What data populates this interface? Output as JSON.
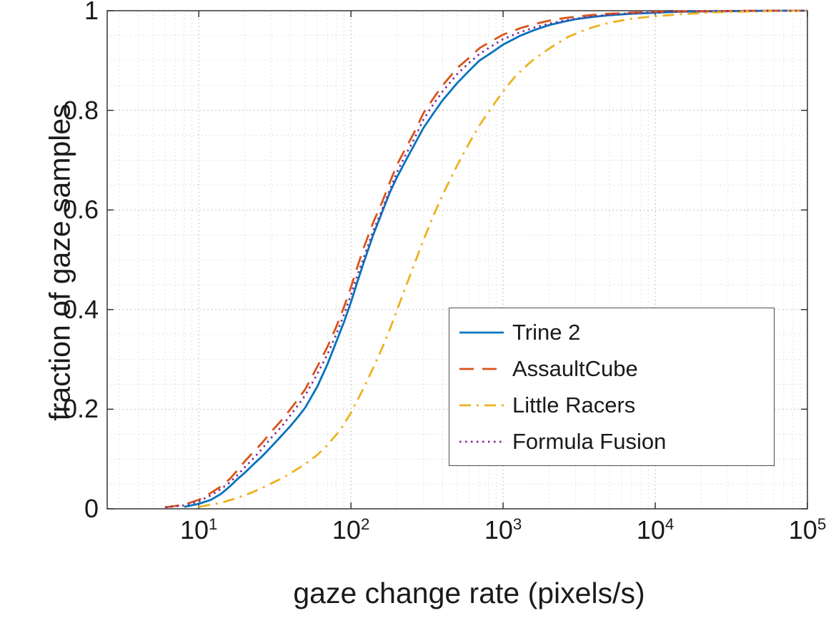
{
  "figure": {
    "background": "#ffffff",
    "text_color": "#1a1a1a"
  },
  "chart_data": {
    "type": "line",
    "subtype": "cdf",
    "title": "",
    "xlabel": "gaze change rate (pixels/s)",
    "ylabel": "fraction of gaze samples",
    "x_scale": "log",
    "xlim": [
      2.5,
      100000
    ],
    "ylim": [
      0,
      1
    ],
    "x_ticks": [
      {
        "base": "10",
        "exp": "1",
        "value": 10
      },
      {
        "base": "10",
        "exp": "2",
        "value": 100
      },
      {
        "base": "10",
        "exp": "3",
        "value": 1000
      },
      {
        "base": "10",
        "exp": "4",
        "value": 10000
      },
      {
        "base": "10",
        "exp": "5",
        "value": 100000
      }
    ],
    "y_ticks": [
      {
        "label": "0",
        "value": 0
      },
      {
        "label": "0.2",
        "value": 0.2
      },
      {
        "label": "0.4",
        "value": 0.4
      },
      {
        "label": "0.6",
        "value": 0.6
      },
      {
        "label": "0.8",
        "value": 0.8
      },
      {
        "label": "1",
        "value": 1
      }
    ],
    "grid": {
      "major": true,
      "minor": true,
      "style": "dotted",
      "y_minor_step": 0.05
    },
    "legend": {
      "position": "center-right",
      "border": true
    },
    "series": [
      {
        "name": "Trine 2",
        "color": "#0072BD",
        "line_style": "solid",
        "points": [
          [
            8,
            0.004
          ],
          [
            10,
            0.01
          ],
          [
            12,
            0.018
          ],
          [
            14,
            0.03
          ],
          [
            16,
            0.045
          ],
          [
            18,
            0.06
          ],
          [
            20,
            0.072
          ],
          [
            23,
            0.09
          ],
          [
            26,
            0.105
          ],
          [
            30,
            0.125
          ],
          [
            35,
            0.147
          ],
          [
            40,
            0.166
          ],
          [
            45,
            0.185
          ],
          [
            50,
            0.203
          ],
          [
            60,
            0.245
          ],
          [
            70,
            0.29
          ],
          [
            80,
            0.335
          ],
          [
            90,
            0.375
          ],
          [
            100,
            0.415
          ],
          [
            110,
            0.455
          ],
          [
            120,
            0.49
          ],
          [
            140,
            0.55
          ],
          [
            160,
            0.595
          ],
          [
            180,
            0.635
          ],
          [
            200,
            0.665
          ],
          [
            230,
            0.7
          ],
          [
            260,
            0.73
          ],
          [
            300,
            0.765
          ],
          [
            350,
            0.795
          ],
          [
            400,
            0.82
          ],
          [
            500,
            0.855
          ],
          [
            600,
            0.88
          ],
          [
            700,
            0.9
          ],
          [
            850,
            0.917
          ],
          [
            1000,
            0.932
          ],
          [
            1300,
            0.95
          ],
          [
            1600,
            0.961
          ],
          [
            2000,
            0.971
          ],
          [
            2500,
            0.978
          ],
          [
            3000,
            0.983
          ],
          [
            4000,
            0.988
          ],
          [
            5000,
            0.991
          ],
          [
            7000,
            0.994
          ],
          [
            10000,
            0.996
          ],
          [
            15000,
            0.998
          ],
          [
            30000,
            0.999
          ],
          [
            60000,
            1.0
          ],
          [
            100000,
            1.0
          ]
        ]
      },
      {
        "name": "AssaultCube",
        "color": "#D95319",
        "line_style": "dashed",
        "points": [
          [
            6,
            0.003
          ],
          [
            8,
            0.008
          ],
          [
            10,
            0.018
          ],
          [
            12,
            0.032
          ],
          [
            14,
            0.045
          ],
          [
            16,
            0.06
          ],
          [
            18,
            0.078
          ],
          [
            20,
            0.095
          ],
          [
            23,
            0.115
          ],
          [
            26,
            0.132
          ],
          [
            30,
            0.155
          ],
          [
            35,
            0.178
          ],
          [
            40,
            0.2
          ],
          [
            45,
            0.22
          ],
          [
            50,
            0.24
          ],
          [
            60,
            0.285
          ],
          [
            70,
            0.325
          ],
          [
            80,
            0.365
          ],
          [
            90,
            0.405
          ],
          [
            100,
            0.445
          ],
          [
            110,
            0.485
          ],
          [
            120,
            0.52
          ],
          [
            140,
            0.575
          ],
          [
            160,
            0.615
          ],
          [
            180,
            0.655
          ],
          [
            200,
            0.69
          ],
          [
            230,
            0.725
          ],
          [
            260,
            0.755
          ],
          [
            300,
            0.795
          ],
          [
            350,
            0.825
          ],
          [
            400,
            0.85
          ],
          [
            500,
            0.885
          ],
          [
            600,
            0.906
          ],
          [
            700,
            0.925
          ],
          [
            850,
            0.94
          ],
          [
            1000,
            0.952
          ],
          [
            1300,
            0.965
          ],
          [
            1600,
            0.973
          ],
          [
            2000,
            0.98
          ],
          [
            2500,
            0.985
          ],
          [
            3000,
            0.988
          ],
          [
            4000,
            0.992
          ],
          [
            5000,
            0.994
          ],
          [
            7000,
            0.996
          ],
          [
            10000,
            0.998
          ],
          [
            20000,
            0.999
          ],
          [
            50000,
            1.0
          ],
          [
            100000,
            1.0
          ]
        ]
      },
      {
        "name": "Little Racers",
        "color": "#EDB120",
        "line_style": "dash-dot",
        "points": [
          [
            10,
            0.004
          ],
          [
            14,
            0.012
          ],
          [
            18,
            0.022
          ],
          [
            22,
            0.032
          ],
          [
            26,
            0.042
          ],
          [
            30,
            0.051
          ],
          [
            35,
            0.061
          ],
          [
            40,
            0.071
          ],
          [
            50,
            0.09
          ],
          [
            60,
            0.108
          ],
          [
            70,
            0.128
          ],
          [
            85,
            0.158
          ],
          [
            100,
            0.193
          ],
          [
            120,
            0.24
          ],
          [
            140,
            0.283
          ],
          [
            160,
            0.322
          ],
          [
            180,
            0.36
          ],
          [
            200,
            0.398
          ],
          [
            230,
            0.447
          ],
          [
            260,
            0.49
          ],
          [
            300,
            0.54
          ],
          [
            350,
            0.59
          ],
          [
            400,
            0.63
          ],
          [
            450,
            0.662
          ],
          [
            500,
            0.69
          ],
          [
            600,
            0.735
          ],
          [
            700,
            0.77
          ],
          [
            850,
            0.808
          ],
          [
            1000,
            0.838
          ],
          [
            1200,
            0.868
          ],
          [
            1500,
            0.896
          ],
          [
            1800,
            0.914
          ],
          [
            2200,
            0.932
          ],
          [
            2700,
            0.948
          ],
          [
            3300,
            0.959
          ],
          [
            4000,
            0.968
          ],
          [
            5000,
            0.976
          ],
          [
            7000,
            0.984
          ],
          [
            10000,
            0.989
          ],
          [
            15000,
            0.993
          ],
          [
            25000,
            0.997
          ],
          [
            50000,
            0.999
          ],
          [
            100000,
            1.0
          ]
        ]
      },
      {
        "name": "Formula Fusion",
        "color": "#7E2F8E",
        "line_style": "dotted",
        "points": [
          [
            6,
            0.003
          ],
          [
            8,
            0.007
          ],
          [
            10,
            0.015
          ],
          [
            12,
            0.027
          ],
          [
            14,
            0.04
          ],
          [
            16,
            0.053
          ],
          [
            18,
            0.068
          ],
          [
            20,
            0.083
          ],
          [
            23,
            0.102
          ],
          [
            26,
            0.12
          ],
          [
            30,
            0.143
          ],
          [
            35,
            0.165
          ],
          [
            40,
            0.188
          ],
          [
            45,
            0.208
          ],
          [
            50,
            0.228
          ],
          [
            60,
            0.27
          ],
          [
            70,
            0.31
          ],
          [
            80,
            0.35
          ],
          [
            90,
            0.39
          ],
          [
            100,
            0.43
          ],
          [
            110,
            0.468
          ],
          [
            120,
            0.5
          ],
          [
            140,
            0.558
          ],
          [
            160,
            0.6
          ],
          [
            180,
            0.64
          ],
          [
            200,
            0.675
          ],
          [
            230,
            0.712
          ],
          [
            260,
            0.742
          ],
          [
            300,
            0.782
          ],
          [
            350,
            0.813
          ],
          [
            400,
            0.838
          ],
          [
            500,
            0.873
          ],
          [
            600,
            0.896
          ],
          [
            700,
            0.913
          ],
          [
            850,
            0.93
          ],
          [
            1000,
            0.943
          ],
          [
            1300,
            0.957
          ],
          [
            1600,
            0.966
          ],
          [
            2000,
            0.974
          ],
          [
            2500,
            0.98
          ],
          [
            3000,
            0.984
          ],
          [
            4000,
            0.989
          ],
          [
            5000,
            0.992
          ],
          [
            7000,
            0.995
          ],
          [
            10000,
            0.997
          ],
          [
            20000,
            0.999
          ],
          [
            50000,
            1.0
          ],
          [
            100000,
            1.0
          ]
        ]
      }
    ]
  }
}
